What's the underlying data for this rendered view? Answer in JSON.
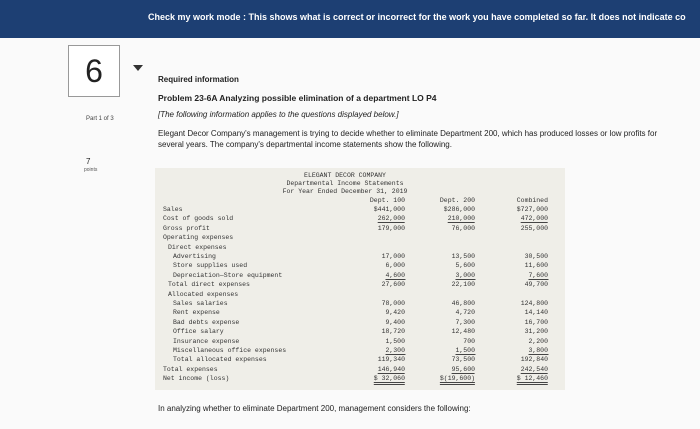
{
  "banner": "Check my work mode : This shows what is correct or incorrect for the work you have completed so far. It does not indicate co",
  "question_number": "6",
  "part": "Part 1 of 3",
  "points": {
    "value": "7",
    "label": "points"
  },
  "content": {
    "heading": "Required information",
    "problem": "Problem 23-6A Analyzing possible elimination of a department LO P4",
    "note": "[The following information applies to the questions displayed below.]",
    "paragraph": "Elegant Decor Company's management is trying to decide whether to eliminate Department 200, which has produced losses or low profits for several years. The company's departmental income statements show the following."
  },
  "statement": {
    "company": "ELEGANT DECOR COMPANY",
    "title": "Departmental Income Statements",
    "period": "For Year Ended December 31, 2019",
    "columns": [
      "Dept. 100",
      "Dept. 200",
      "Combined"
    ],
    "rows": [
      [
        "Sales",
        "$441,000",
        "$286,000",
        "$727,000"
      ],
      [
        "Cost of goods sold",
        "262,000",
        "210,000",
        "472,000"
      ],
      [
        "Gross profit",
        "179,000",
        "76,000",
        "255,000"
      ],
      [
        "Operating expenses"
      ],
      [
        "Direct expenses"
      ],
      [
        "Advertising",
        "17,000",
        "13,500",
        "30,500"
      ],
      [
        "Store supplies used",
        "6,000",
        "5,600",
        "11,600"
      ],
      [
        "Depreciation—Store equipment",
        "4,600",
        "3,000",
        "7,600"
      ],
      [
        "Total direct expenses",
        "27,600",
        "22,100",
        "49,700"
      ],
      [
        "Allocated expenses"
      ],
      [
        "Sales salaries",
        "78,000",
        "46,800",
        "124,800"
      ],
      [
        "Rent expense",
        "9,420",
        "4,720",
        "14,140"
      ],
      [
        "Bad debts expense",
        "9,400",
        "7,300",
        "16,700"
      ],
      [
        "Office salary",
        "18,720",
        "12,480",
        "31,200"
      ],
      [
        "Insurance expense",
        "1,500",
        "700",
        "2,200"
      ],
      [
        "Miscellaneous office expenses",
        "2,300",
        "1,500",
        "3,800"
      ],
      [
        "Total allocated expenses",
        "119,340",
        "73,500",
        "192,840"
      ],
      [
        "Total expenses",
        "146,940",
        "95,600",
        "242,540"
      ],
      [
        "Net income (loss)",
        "$ 32,060",
        "$(19,600)",
        "$ 12,460"
      ]
    ]
  },
  "footer": "In analyzing whether to eliminate Department 200, management considers the following:"
}
